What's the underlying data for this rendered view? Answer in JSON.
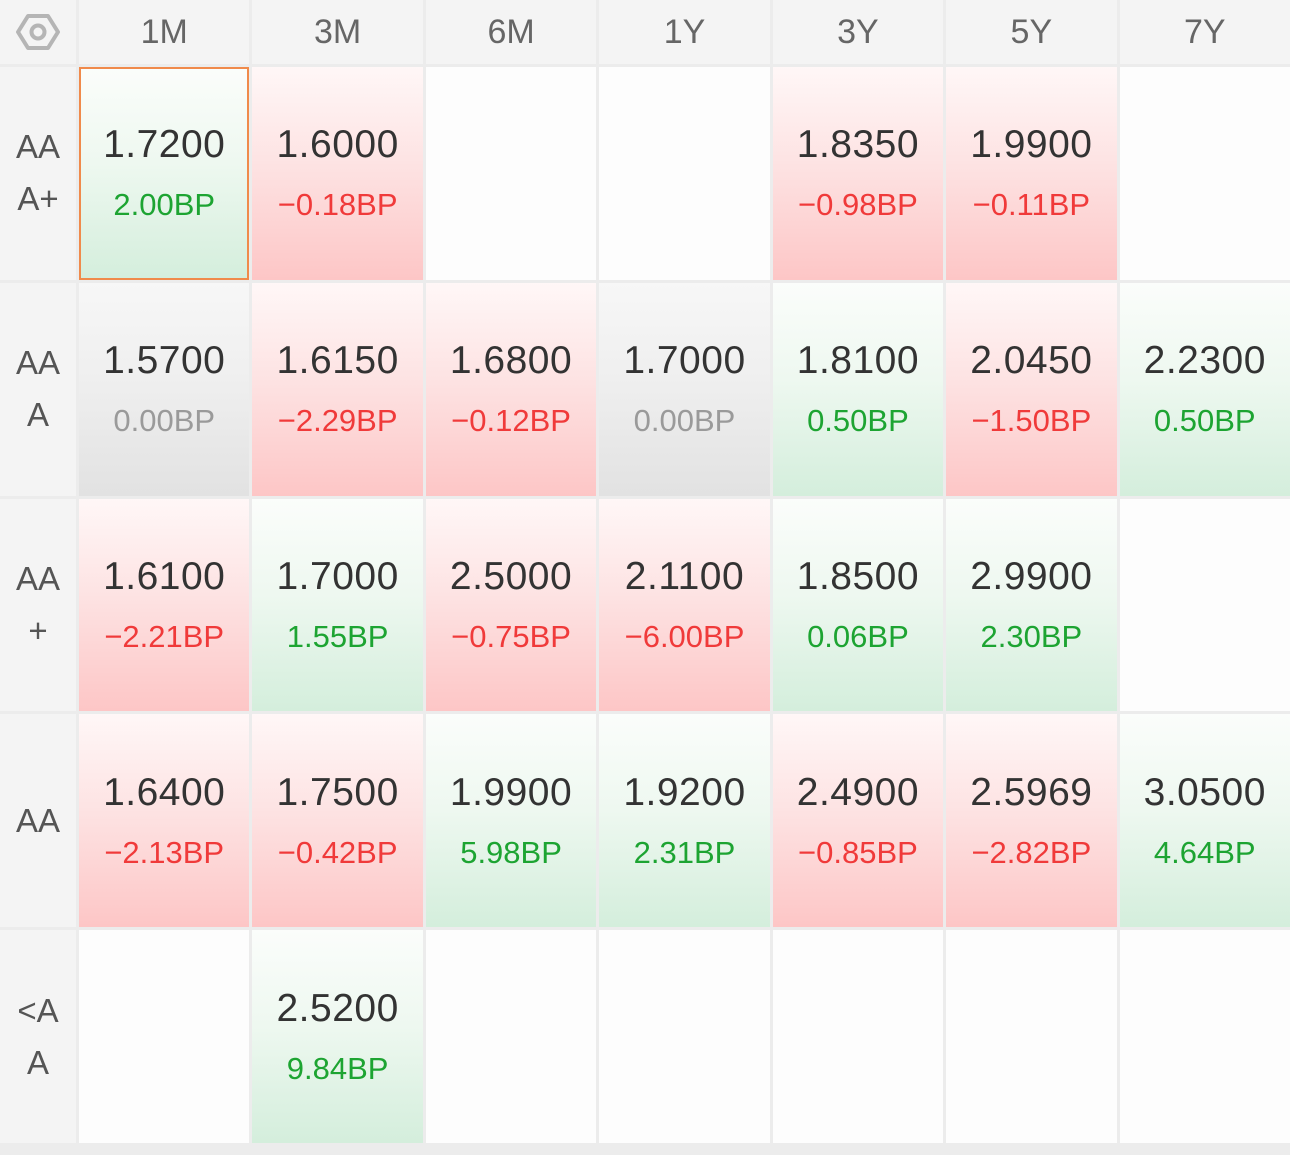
{
  "colors": {
    "up": "#1da432",
    "down": "#f03a3a",
    "flat": "#9a9a9a",
    "selected_border": "#f08a4b"
  },
  "settings_icon": "settings-hexagon-icon",
  "columns": [
    "1M",
    "3M",
    "6M",
    "1Y",
    "3Y",
    "5Y",
    "7Y"
  ],
  "rows": [
    {
      "label": "AAA+",
      "cells": [
        {
          "value": "1.7200",
          "change": "2.00BP",
          "trend": "up",
          "selected": true
        },
        {
          "value": "1.6000",
          "change": "−0.18BP",
          "trend": "down"
        },
        null,
        null,
        {
          "value": "1.8350",
          "change": "−0.98BP",
          "trend": "down"
        },
        {
          "value": "1.9900",
          "change": "−0.11BP",
          "trend": "down"
        },
        null
      ]
    },
    {
      "label": "AAA",
      "cells": [
        {
          "value": "1.5700",
          "change": "0.00BP",
          "trend": "flat"
        },
        {
          "value": "1.6150",
          "change": "−2.29BP",
          "trend": "down"
        },
        {
          "value": "1.6800",
          "change": "−0.12BP",
          "trend": "down"
        },
        {
          "value": "1.7000",
          "change": "0.00BP",
          "trend": "flat"
        },
        {
          "value": "1.8100",
          "change": "0.50BP",
          "trend": "up"
        },
        {
          "value": "2.0450",
          "change": "−1.50BP",
          "trend": "down"
        },
        {
          "value": "2.2300",
          "change": "0.50BP",
          "trend": "up"
        }
      ]
    },
    {
      "label": "AA+",
      "cells": [
        {
          "value": "1.6100",
          "change": "−2.21BP",
          "trend": "down"
        },
        {
          "value": "1.7000",
          "change": "1.55BP",
          "trend": "up"
        },
        {
          "value": "2.5000",
          "change": "−0.75BP",
          "trend": "down"
        },
        {
          "value": "2.1100",
          "change": "−6.00BP",
          "trend": "down"
        },
        {
          "value": "1.8500",
          "change": "0.06BP",
          "trend": "up"
        },
        {
          "value": "2.9900",
          "change": "2.30BP",
          "trend": "up"
        },
        null
      ]
    },
    {
      "label": "AA",
      "cells": [
        {
          "value": "1.6400",
          "change": "−2.13BP",
          "trend": "down"
        },
        {
          "value": "1.7500",
          "change": "−0.42BP",
          "trend": "down"
        },
        {
          "value": "1.9900",
          "change": "5.98BP",
          "trend": "up"
        },
        {
          "value": "1.9200",
          "change": "2.31BP",
          "trend": "up"
        },
        {
          "value": "2.4900",
          "change": "−0.85BP",
          "trend": "down"
        },
        {
          "value": "2.5969",
          "change": "−2.82BP",
          "trend": "down"
        },
        {
          "value": "3.0500",
          "change": "4.64BP",
          "trend": "up"
        }
      ]
    },
    {
      "label": "<AA",
      "cells": [
        null,
        {
          "value": "2.5200",
          "change": "9.84BP",
          "trend": "up"
        },
        null,
        null,
        null,
        null,
        null
      ]
    }
  ]
}
